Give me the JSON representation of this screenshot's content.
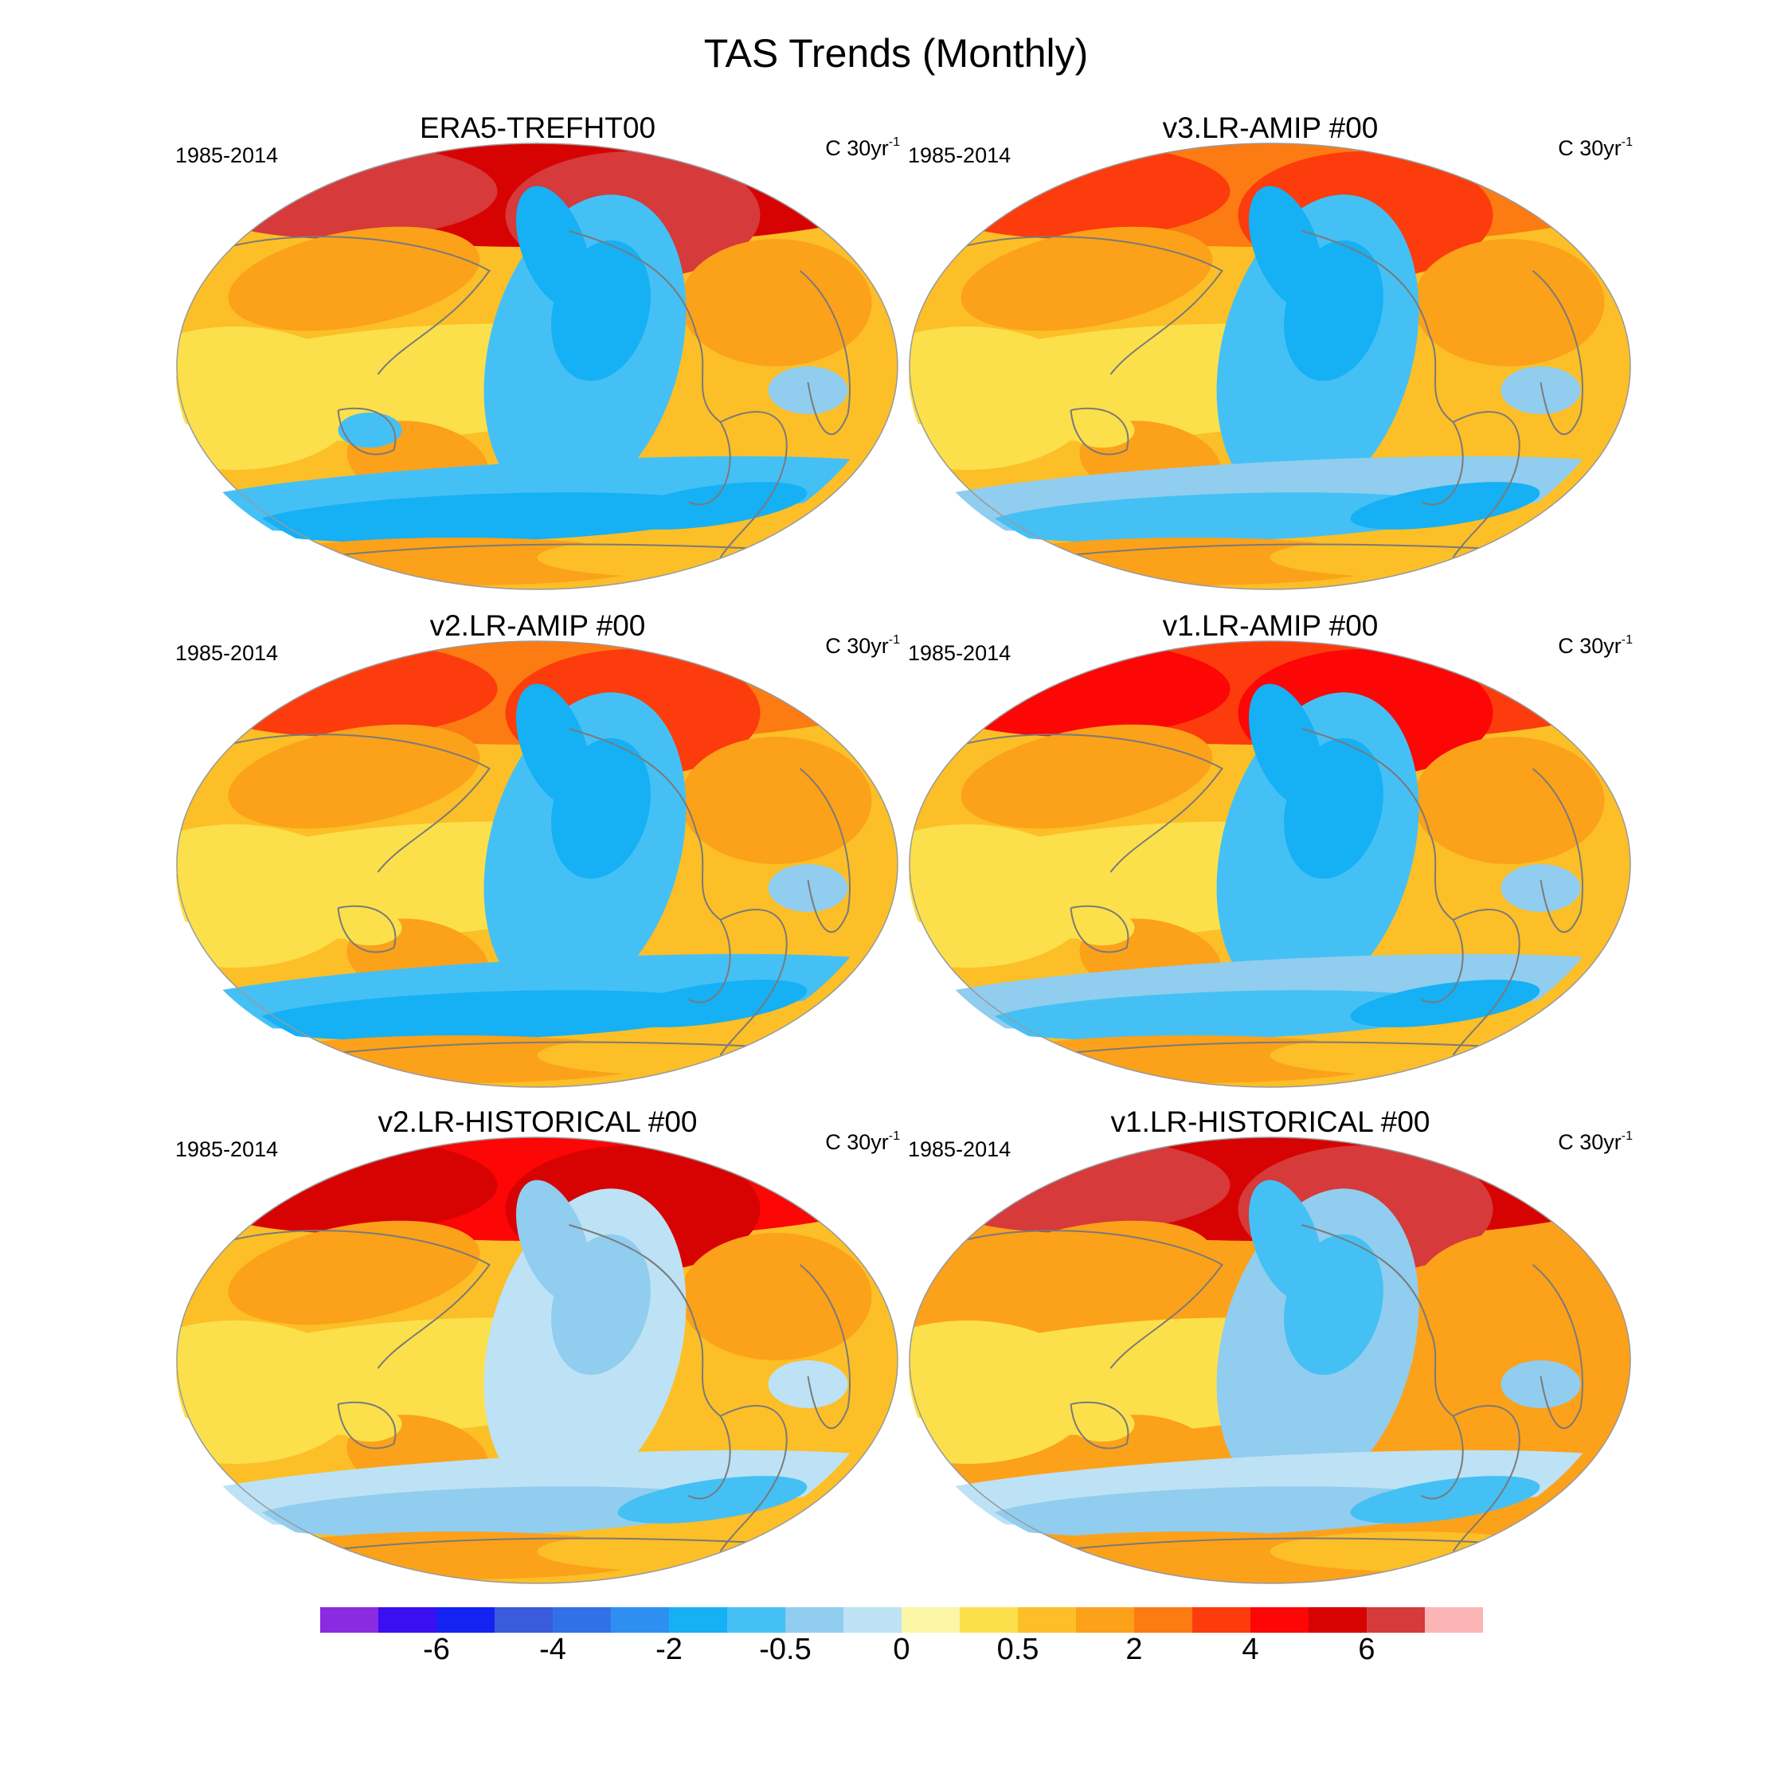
{
  "title": "TAS Trends (Monthly)",
  "chart_data": {
    "type": "heatmap",
    "title": "TAS Trends (Monthly)",
    "projection": "Winkel Tripel global map, Pacific-centred",
    "panels": [
      {
        "name": "ERA5-TREFHT00",
        "period": "1985-2014",
        "units": "C 30yr",
        "units_exp": "-1",
        "pattern": "strong Arctic warming; cooling in eastern Pacific and Southern Ocean; warm continents"
      },
      {
        "name": "v3.LR-AMIP  #00",
        "period": "1985-2014",
        "units": "C 30yr",
        "units_exp": "-1",
        "pattern": "moderate warming; eastern Pacific and Southern Ocean cooling"
      },
      {
        "name": "v2.LR-AMIP  #00",
        "period": "1985-2014",
        "units": "C 30yr",
        "units_exp": "-1",
        "pattern": "moderate warming; eastern Pacific and Southern Ocean cooling"
      },
      {
        "name": "v1.LR-AMIP  #00",
        "period": "1985-2014",
        "units": "C 30yr",
        "units_exp": "-1",
        "pattern": "moderate warming; eastern Pacific and Southern Ocean cooling"
      },
      {
        "name": "v2.LR-HISTORICAL  #00",
        "period": "1985-2014",
        "units": "C 30yr",
        "units_exp": "-1",
        "pattern": "widespread warming, strong Arctic warming, little cooling"
      },
      {
        "name": "v1.LR-HISTORICAL  #00",
        "period": "1985-2014",
        "units": "C 30yr",
        "units_exp": "-1",
        "pattern": "strongest Arctic warming; weak Southern Ocean cooling"
      }
    ],
    "colorbar": {
      "colors": [
        "#8a2be2",
        "#3a0ff0",
        "#1523f2",
        "#3a5bdc",
        "#3071e8",
        "#2f8ff0",
        "#16b0f5",
        "#45c0f5",
        "#91cdee",
        "#bde2f5",
        "#fbf6a8",
        "#fce04b",
        "#fcbf27",
        "#fca11a",
        "#fc7b12",
        "#fc3c0c",
        "#fc0606",
        "#d70303",
        "#d63a3a",
        "#fcb5b5"
      ],
      "tick_labels": [
        "-6",
        "-4",
        "-2",
        "-0.5",
        "0",
        "0.5",
        "2",
        "4",
        "6"
      ],
      "tick_boundaries": [
        2,
        4,
        6,
        8,
        10,
        12,
        14,
        16,
        18
      ]
    }
  }
}
